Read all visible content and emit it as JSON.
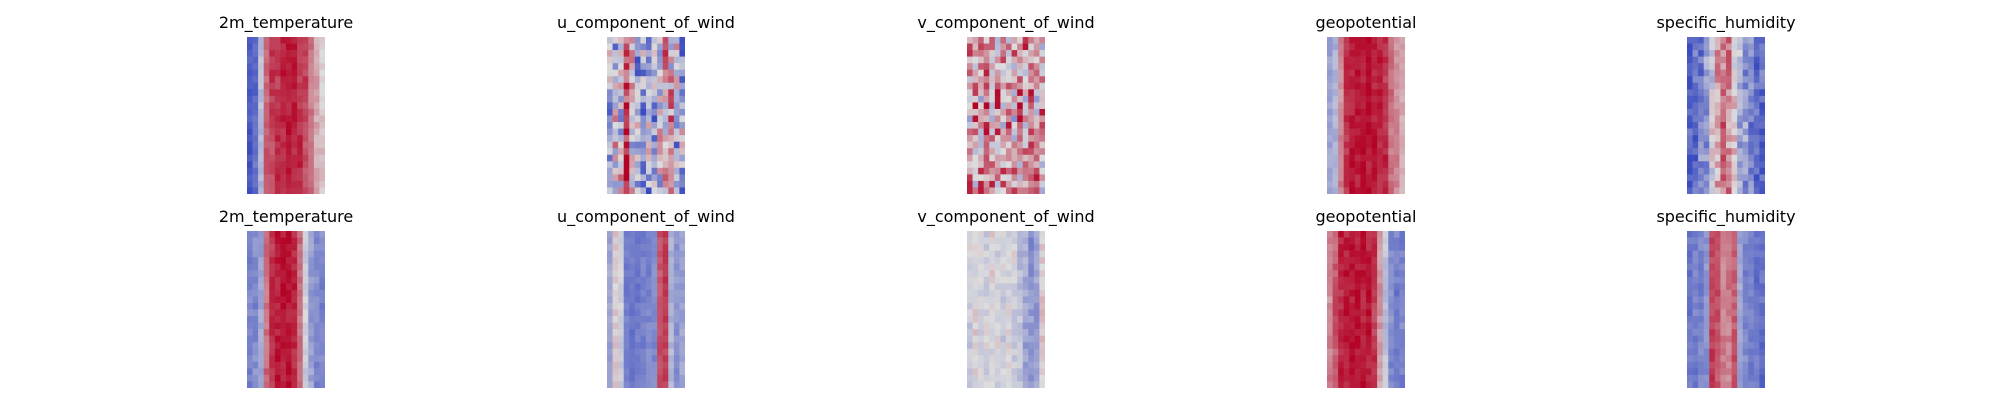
{
  "figure": {
    "background": "#ffffff"
  },
  "colormap": {
    "name": "coolwarm",
    "low": "#3b4cc0",
    "mid": "#dddddd",
    "high": "#b40426"
  },
  "chart_data": [
    {
      "type": "heatmap",
      "title": "2m_temperature",
      "row": 1,
      "col": 1,
      "column_profile": [
        0.05,
        0.12,
        0.38,
        0.78,
        0.86,
        0.9,
        0.93,
        0.95,
        0.93,
        0.9,
        0.84,
        0.74,
        0.62,
        0.55
      ],
      "variation": 0.05
    },
    {
      "type": "heatmap",
      "title": "u_component_of_wind",
      "row": 1,
      "col": 2,
      "column_profile": [
        0.35,
        0.42,
        0.48,
        0.85,
        0.55,
        0.3,
        0.22,
        0.28,
        0.35,
        0.45,
        0.55,
        0.62,
        0.42,
        0.3
      ],
      "variation": 0.28
    },
    {
      "type": "heatmap",
      "title": "v_component_of_wind",
      "row": 1,
      "col": 3,
      "column_profile": [
        0.6,
        0.65,
        0.58,
        0.68,
        0.62,
        0.66,
        0.6,
        0.64,
        0.58,
        0.66,
        0.62,
        0.68,
        0.6,
        0.62
      ],
      "variation": 0.25
    },
    {
      "type": "heatmap",
      "title": "geopotential",
      "row": 1,
      "col": 3,
      "column_profile": [
        0.3,
        0.35,
        0.7,
        0.9,
        0.95,
        0.96,
        0.97,
        0.97,
        0.95,
        0.93,
        0.9,
        0.75,
        0.68,
        0.62
      ],
      "variation": 0.05
    },
    {
      "type": "heatmap",
      "title": "specific_humidity",
      "row": 1,
      "col": 5,
      "column_profile": [
        0.05,
        0.1,
        0.2,
        0.28,
        0.45,
        0.62,
        0.78,
        0.72,
        0.55,
        0.35,
        0.25,
        0.18,
        0.12,
        0.08
      ],
      "variation": 0.12
    },
    {
      "type": "heatmap",
      "title": "2m_temperature",
      "row": 2,
      "col": 1,
      "column_profile": [
        0.2,
        0.22,
        0.3,
        0.75,
        0.9,
        0.95,
        0.97,
        0.97,
        0.92,
        0.75,
        0.45,
        0.28,
        0.22,
        0.2
      ],
      "variation": 0.05
    },
    {
      "type": "heatmap",
      "title": "u_component_of_wind",
      "row": 2,
      "col": 2,
      "column_profile": [
        0.3,
        0.55,
        0.45,
        0.18,
        0.15,
        0.16,
        0.18,
        0.2,
        0.22,
        0.82,
        0.88,
        0.35,
        0.25,
        0.3
      ],
      "variation": 0.04
    },
    {
      "type": "heatmap",
      "title": "v_component_of_wind",
      "row": 2,
      "col": 3,
      "column_profile": [
        0.45,
        0.5,
        0.48,
        0.46,
        0.5,
        0.47,
        0.45,
        0.48,
        0.46,
        0.4,
        0.32,
        0.25,
        0.28,
        0.55
      ],
      "variation": 0.06
    },
    {
      "type": "heatmap",
      "title": "geopotential",
      "row": 2,
      "col": 4,
      "column_profile": [
        0.7,
        0.8,
        0.92,
        0.95,
        0.97,
        0.97,
        0.96,
        0.95,
        0.88,
        0.65,
        0.4,
        0.22,
        0.18,
        0.2
      ],
      "variation": 0.05
    },
    {
      "type": "heatmap",
      "title": "specific_humidity",
      "row": 2,
      "col": 5,
      "column_profile": [
        0.15,
        0.18,
        0.2,
        0.25,
        0.85,
        0.82,
        0.7,
        0.72,
        0.8,
        0.3,
        0.2,
        0.18,
        0.15,
        0.12
      ],
      "variation": 0.05
    }
  ]
}
